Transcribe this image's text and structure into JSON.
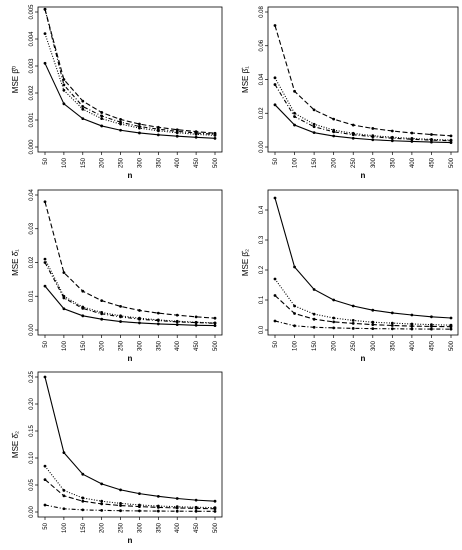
{
  "chart_data": [
    {
      "type": "line",
      "ylabel": "MSE β̂⁰",
      "xlabel": "n",
      "x": [
        50,
        100,
        150,
        200,
        250,
        300,
        350,
        400,
        450,
        500
      ],
      "xticks": [
        "50",
        "100",
        "150",
        "200",
        "250",
        "300",
        "350",
        "400",
        "450",
        "500"
      ],
      "ylim": [
        0,
        0.005
      ],
      "yticks": [
        "0.000",
        "0.001",
        "0.002",
        "0.003",
        "0.004",
        "0.005"
      ],
      "ytick_values": [
        0,
        0.001,
        0.002,
        0.003,
        0.004,
        0.005
      ],
      "series": [
        {
          "style": "solid",
          "values": [
            0.0031,
            0.0016,
            0.00105,
            0.00078,
            0.00062,
            0.00052,
            0.00045,
            0.0004,
            0.00036,
            0.00032
          ]
        },
        {
          "style": "dashed",
          "values": [
            0.0051,
            0.0025,
            0.0017,
            0.00128,
            0.00102,
            0.00085,
            0.00073,
            0.00064,
            0.00057,
            0.00051
          ]
        },
        {
          "style": "dotted",
          "values": [
            0.0042,
            0.0021,
            0.0014,
            0.00105,
            0.00085,
            0.0007,
            0.0006,
            0.00053,
            0.00047,
            0.00043
          ]
        },
        {
          "style": "dotdash",
          "values": [
            0.0051,
            0.0023,
            0.0015,
            0.00115,
            0.00092,
            0.00076,
            0.00066,
            0.00058,
            0.00052,
            0.00047
          ]
        }
      ]
    },
    {
      "type": "line",
      "ylabel": "MSE β̂₁",
      "xlabel": "n",
      "x": [
        50,
        100,
        150,
        200,
        250,
        300,
        350,
        400,
        450,
        500
      ],
      "xticks": [
        "50",
        "100",
        "150",
        "200",
        "250",
        "300",
        "350",
        "400",
        "450",
        "500"
      ],
      "ylim": [
        0,
        0.08
      ],
      "yticks": [
        "0.00",
        "0.02",
        "0.04",
        "0.06",
        "0.08"
      ],
      "ytick_values": [
        0,
        0.02,
        0.04,
        0.06,
        0.08
      ],
      "series": [
        {
          "style": "solid",
          "values": [
            0.025,
            0.013,
            0.0085,
            0.0065,
            0.0052,
            0.0043,
            0.0037,
            0.0033,
            0.0029,
            0.0026
          ]
        },
        {
          "style": "dashed",
          "values": [
            0.072,
            0.033,
            0.022,
            0.0165,
            0.013,
            0.011,
            0.0095,
            0.0083,
            0.0074,
            0.0066
          ]
        },
        {
          "style": "dotted",
          "values": [
            0.041,
            0.02,
            0.0135,
            0.01,
            0.0081,
            0.0067,
            0.0058,
            0.0051,
            0.0045,
            0.0041
          ]
        },
        {
          "style": "dotdash",
          "values": [
            0.037,
            0.018,
            0.012,
            0.009,
            0.0073,
            0.0061,
            0.0052,
            0.0046,
            0.0041,
            0.0037
          ]
        }
      ]
    },
    {
      "type": "line",
      "ylabel": "MSE δ̂₁",
      "xlabel": "n",
      "x": [
        50,
        100,
        150,
        200,
        250,
        300,
        350,
        400,
        450,
        500
      ],
      "xticks": [
        "50",
        "100",
        "150",
        "200",
        "250",
        "300",
        "350",
        "400",
        "450",
        "500"
      ],
      "ylim": [
        0,
        0.04
      ],
      "yticks": [
        "0.00",
        "0.01",
        "0.02",
        "0.03",
        "0.04"
      ],
      "ytick_values": [
        0,
        0.01,
        0.02,
        0.03,
        0.04
      ],
      "series": [
        {
          "style": "solid",
          "values": [
            0.013,
            0.0063,
            0.0042,
            0.0032,
            0.0025,
            0.0021,
            0.0018,
            0.0016,
            0.0014,
            0.0013
          ]
        },
        {
          "style": "dashed",
          "values": [
            0.038,
            0.017,
            0.0115,
            0.0087,
            0.007,
            0.0058,
            0.005,
            0.0044,
            0.0039,
            0.0035
          ]
        },
        {
          "style": "dotted",
          "values": [
            0.021,
            0.01,
            0.0068,
            0.0052,
            0.0042,
            0.0035,
            0.003,
            0.0026,
            0.0023,
            0.0021
          ]
        },
        {
          "style": "dotdash",
          "values": [
            0.02,
            0.0095,
            0.0064,
            0.0048,
            0.0039,
            0.0032,
            0.0028,
            0.0024,
            0.0022,
            0.002
          ]
        }
      ]
    },
    {
      "type": "line",
      "ylabel": "MSE β̂₂",
      "xlabel": "n",
      "x": [
        50,
        100,
        150,
        200,
        250,
        300,
        350,
        400,
        450,
        500
      ],
      "xticks": [
        "50",
        "100",
        "150",
        "200",
        "250",
        "300",
        "350",
        "400",
        "450",
        "500"
      ],
      "ylim": [
        0,
        0.45
      ],
      "yticks": [
        "0.0",
        "0.1",
        "0.2",
        "0.3",
        "0.4"
      ],
      "ytick_values": [
        0,
        0.1,
        0.2,
        0.3,
        0.4
      ],
      "series": [
        {
          "style": "solid",
          "values": [
            0.44,
            0.21,
            0.135,
            0.1,
            0.08,
            0.066,
            0.057,
            0.05,
            0.044,
            0.04
          ]
        },
        {
          "style": "dashed",
          "values": [
            0.115,
            0.055,
            0.036,
            0.027,
            0.022,
            0.018,
            0.015,
            0.013,
            0.012,
            0.011
          ]
        },
        {
          "style": "dotted",
          "values": [
            0.17,
            0.08,
            0.053,
            0.04,
            0.032,
            0.026,
            0.023,
            0.02,
            0.018,
            0.016
          ]
        },
        {
          "style": "dotdash",
          "values": [
            0.03,
            0.014,
            0.009,
            0.007,
            0.0055,
            0.0046,
            0.004,
            0.0035,
            0.0031,
            0.0028
          ]
        }
      ]
    },
    {
      "type": "line",
      "ylabel": "MSE δ̂₂",
      "xlabel": "n",
      "x": [
        50,
        100,
        150,
        200,
        250,
        300,
        350,
        400,
        450,
        500
      ],
      "xticks": [
        "50",
        "100",
        "150",
        "200",
        "250",
        "300",
        "350",
        "400",
        "450",
        "500"
      ],
      "ylim": [
        0,
        0.25
      ],
      "yticks": [
        "0.00",
        "0.05",
        "0.10",
        "0.15",
        "0.20",
        "0.25"
      ],
      "ytick_values": [
        0,
        0.05,
        0.1,
        0.15,
        0.2,
        0.25
      ],
      "series": [
        {
          "style": "solid",
          "values": [
            0.25,
            0.11,
            0.07,
            0.052,
            0.041,
            0.034,
            0.029,
            0.025,
            0.022,
            0.02
          ]
        },
        {
          "style": "dashed",
          "values": [
            0.06,
            0.03,
            0.02,
            0.015,
            0.012,
            0.01,
            0.0085,
            0.0075,
            0.0067,
            0.006
          ]
        },
        {
          "style": "dotted",
          "values": [
            0.085,
            0.04,
            0.026,
            0.02,
            0.016,
            0.013,
            0.011,
            0.0098,
            0.0088,
            0.008
          ]
        },
        {
          "style": "dotdash",
          "values": [
            0.013,
            0.006,
            0.004,
            0.003,
            0.0024,
            0.002,
            0.0017,
            0.0015,
            0.0013,
            0.0012
          ]
        }
      ]
    }
  ]
}
